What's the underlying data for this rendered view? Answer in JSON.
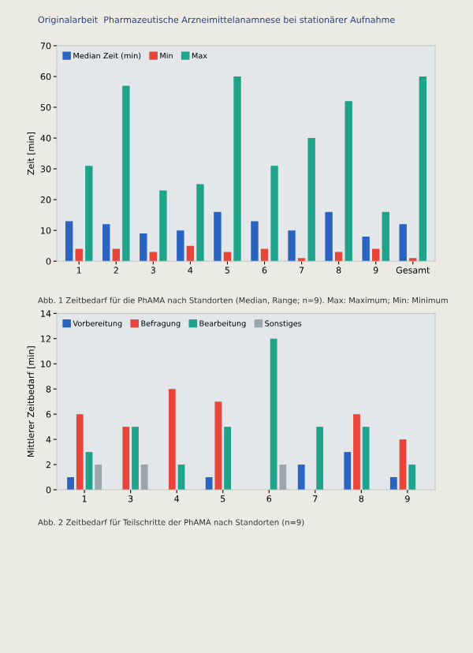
{
  "chart_data": [
    {
      "type": "bar",
      "title": "Originalarbeit  Pharmazeutische Arzneimittelanamnese bei stationärer Aufnahme",
      "ylabel": "Zeit [min]",
      "categories": [
        "1",
        "2",
        "3",
        "4",
        "5",
        "6",
        "7",
        "8",
        "9",
        "Gesamt"
      ],
      "series": [
        {
          "name": "Median Zeit (min)",
          "color": "#2a64c0",
          "values": [
            13,
            12,
            9,
            10,
            16,
            13,
            10,
            16,
            8,
            12
          ]
        },
        {
          "name": "Min",
          "color": "#e8453a",
          "values": [
            4,
            4,
            3,
            5,
            3,
            4,
            1,
            3,
            4,
            1
          ]
        },
        {
          "name": "Max",
          "color": "#1fa38a",
          "values": [
            31,
            57,
            23,
            25,
            60,
            31,
            40,
            52,
            16,
            60
          ]
        }
      ],
      "ylim": [
        0,
        70
      ],
      "yticks": [
        0,
        10,
        20,
        30,
        40,
        50,
        60,
        70
      ],
      "legend": "top left",
      "annotations": [
        "Abb. 1 Zeitbedarf für die PhAMA nach Standorten (Median, Range; n=9). Max: Maximum; Min: Minimum"
      ]
    },
    {
      "type": "bar",
      "ylabel": "Mittlerer Zeitbedarf [min]",
      "categories": [
        "1",
        "3",
        "4",
        "5",
        "6",
        "7",
        "8",
        "9"
      ],
      "series": [
        {
          "name": "Vorbereitung",
          "color": "#2a64c0",
          "values": [
            1,
            null,
            null,
            1,
            null,
            2,
            3,
            1
          ]
        },
        {
          "name": "Befragung",
          "color": "#e8453a",
          "values": [
            6,
            5,
            8,
            7,
            null,
            null,
            6,
            4
          ]
        },
        {
          "name": "Bearbeitung",
          "color": "#1fa38a",
          "values": [
            3,
            5,
            2,
            5,
            12,
            5,
            5,
            2
          ]
        },
        {
          "name": "Sonstiges",
          "color": "#9aa6ad",
          "values": [
            2,
            2,
            null,
            null,
            2,
            null,
            null,
            null
          ]
        }
      ],
      "ylim": [
        0,
        14
      ],
      "yticks": [
        0,
        2,
        4,
        6,
        8,
        10,
        12,
        14
      ],
      "legend": "top left",
      "annotations": [
        "Abb. 2 Zeitbedarf für Teilschritte der PhAMA nach Standorten (n=9)"
      ]
    }
  ]
}
